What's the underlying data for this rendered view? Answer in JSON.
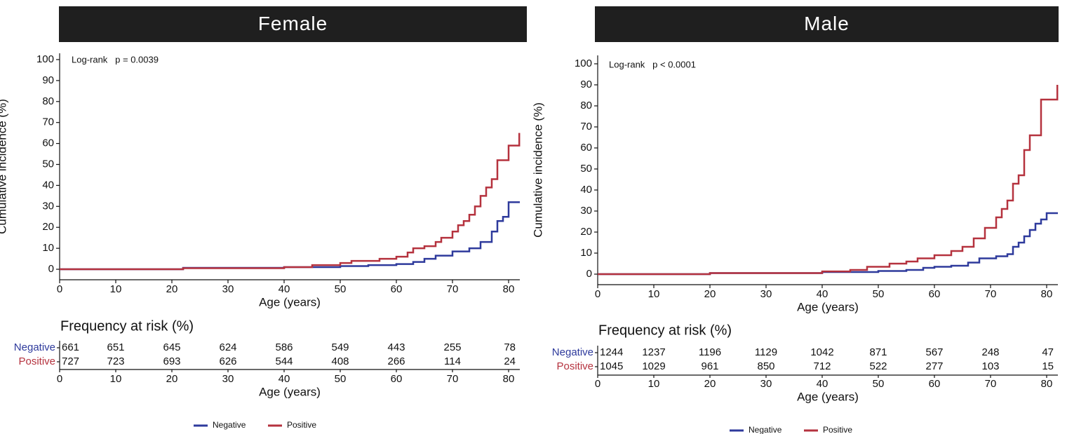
{
  "chart_data": [
    {
      "type": "line",
      "step": true,
      "title": "Female",
      "xlabel": "Age (years)",
      "ylabel": "Cumulative incidence (%)",
      "annotation": "Log-rank   p = 0.0039",
      "xlim": [
        0,
        82
      ],
      "ylim": [
        -5,
        103
      ],
      "xticks": [
        0,
        10,
        20,
        30,
        40,
        50,
        60,
        70,
        80
      ],
      "yticks": [
        0,
        10,
        20,
        30,
        40,
        50,
        60,
        70,
        80,
        90,
        100
      ],
      "series": [
        {
          "name": "Negative",
          "color": "#2e3a9c",
          "x": [
            0,
            22,
            40,
            50,
            55,
            60,
            63,
            65,
            67,
            70,
            73,
            75,
            77,
            78,
            79,
            80,
            82
          ],
          "values": [
            0,
            0.7,
            1,
            1.5,
            2,
            2.5,
            3.5,
            5,
            6.5,
            8.5,
            10,
            13,
            18,
            23,
            25,
            32,
            32
          ]
        },
        {
          "name": "Positive",
          "color": "#b5323e",
          "x": [
            0,
            22,
            40,
            45,
            50,
            52,
            57,
            60,
            62,
            63,
            65,
            67,
            68,
            70,
            71,
            72,
            73,
            74,
            75,
            76,
            77,
            78,
            80,
            81.9
          ],
          "values": [
            0,
            0.5,
            1,
            2,
            3,
            4,
            5,
            6,
            8,
            10,
            11,
            13,
            15,
            18,
            21,
            23,
            26,
            30,
            35,
            39,
            43,
            52,
            59,
            65
          ]
        }
      ],
      "risk_table": {
        "title": "Frequency at risk (%)",
        "xlabel": "Age (years)",
        "xlim": [
          0,
          82
        ],
        "xticks": [
          0,
          10,
          20,
          30,
          40,
          50,
          60,
          70,
          80
        ],
        "rows": [
          {
            "name": "Negative",
            "color": "#2e3a9c",
            "values": [
              661,
              651,
              645,
              624,
              586,
              549,
              443,
              255,
              78
            ]
          },
          {
            "name": "Positive",
            "color": "#b5323e",
            "values": [
              727,
              723,
              693,
              626,
              544,
              408,
              266,
              114,
              24
            ]
          }
        ]
      }
    },
    {
      "type": "line",
      "step": true,
      "title": "Male",
      "xlabel": "Age (years)",
      "ylabel": "Cumulative incidence (%)",
      "annotation": "Log-rank   p < 0.0001",
      "xlim": [
        0,
        82
      ],
      "ylim": [
        -5,
        104
      ],
      "xticks": [
        0,
        10,
        20,
        30,
        40,
        50,
        60,
        70,
        80
      ],
      "yticks": [
        0,
        10,
        20,
        30,
        40,
        50,
        60,
        70,
        80,
        90,
        100
      ],
      "series": [
        {
          "name": "Negative",
          "color": "#2e3a9c",
          "x": [
            0,
            20,
            40,
            50,
            55,
            58,
            60,
            63,
            66,
            68,
            71,
            73,
            74,
            75,
            76,
            77,
            78,
            79,
            80,
            82
          ],
          "values": [
            0,
            0.5,
            1,
            1.5,
            2,
            3,
            3.5,
            4,
            5.5,
            7.5,
            8.5,
            9.5,
            13,
            15,
            18,
            21,
            24,
            26,
            29,
            29
          ]
        },
        {
          "name": "Positive",
          "color": "#b5323e",
          "x": [
            0,
            20,
            40,
            45,
            48,
            52,
            55,
            57,
            60,
            63,
            65,
            67,
            69,
            71,
            72,
            73,
            74,
            75,
            76,
            77,
            79,
            81.9
          ],
          "values": [
            0,
            0.5,
            1.3,
            2,
            3.5,
            5,
            6,
            7.5,
            9,
            11,
            13,
            17,
            22,
            27,
            31,
            35,
            43,
            47,
            59,
            66,
            83,
            90
          ]
        }
      ],
      "risk_table": {
        "title": "Frequency at risk (%)",
        "xlabel": "Age (years)",
        "xlim": [
          0,
          82
        ],
        "xticks": [
          0,
          10,
          20,
          30,
          40,
          50,
          60,
          70,
          80
        ],
        "rows": [
          {
            "name": "Negative",
            "color": "#2e3a9c",
            "values": [
              1244,
              1237,
              1196,
              1129,
              1042,
              871,
              567,
              248,
              47
            ]
          },
          {
            "name": "Positive",
            "color": "#b5323e",
            "values": [
              1045,
              1029,
              961,
              850,
              712,
              522,
              277,
              103,
              15
            ]
          }
        ]
      }
    }
  ]
}
